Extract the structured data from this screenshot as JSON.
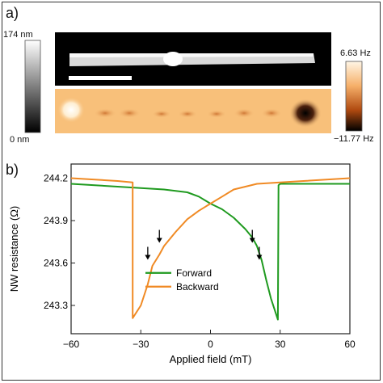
{
  "panel_a": {
    "label": "a)",
    "afm_colorbar": {
      "max_label": "174 nm",
      "min_label": "0 nm"
    },
    "mfm_colorbar": {
      "max_label": "6.63 Hz",
      "min_label": "−11.77 Hz"
    }
  },
  "panel_b": {
    "label": "b)"
  },
  "chart_data": {
    "type": "line",
    "xlabel": "Applied field (mT)",
    "ylabel": "NW resistance (Ω)",
    "xlim": [
      -60,
      60
    ],
    "ylim": [
      243.1,
      244.3
    ],
    "xticks": [
      -60,
      -30,
      0,
      30,
      60
    ],
    "xtick_labels": [
      "−60",
      "−30",
      "0",
      "30",
      "60"
    ],
    "yticks": [
      243.3,
      243.6,
      243.9,
      244.2
    ],
    "ytick_labels": [
      "243.3",
      "243.6",
      "243.9",
      "244.2"
    ],
    "legend_position": "bottom-center",
    "series": [
      {
        "name": "Forward",
        "color": "#1f9a1f",
        "x": [
          -60,
          -40,
          -20,
          -10,
          -5,
          0,
          5,
          10,
          15,
          18,
          20,
          22,
          24,
          26,
          28,
          29,
          29.3,
          30,
          40,
          60
        ],
        "y": [
          244.16,
          244.14,
          244.12,
          244.1,
          244.07,
          244.02,
          243.98,
          243.92,
          243.84,
          243.78,
          243.72,
          243.62,
          243.48,
          243.35,
          243.25,
          243.2,
          244.15,
          244.16,
          244.16,
          244.16
        ]
      },
      {
        "name": "Backward",
        "color": "#f08a24",
        "x": [
          -60,
          -40,
          -33.5,
          -33.5,
          -30,
          -27,
          -25,
          -22,
          -20,
          -15,
          -10,
          -5,
          0,
          5,
          10,
          20,
          40,
          60
        ],
        "y": [
          244.2,
          244.18,
          244.17,
          243.21,
          243.3,
          243.45,
          243.58,
          243.66,
          243.72,
          243.82,
          243.91,
          243.97,
          244.02,
          244.07,
          244.12,
          244.16,
          244.18,
          244.2
        ]
      }
    ],
    "annotations": [
      {
        "type": "arrow-down",
        "x": -27,
        "y": 243.6
      },
      {
        "type": "arrow-down",
        "x": -22,
        "y": 243.72
      },
      {
        "type": "arrow-down",
        "x": 18,
        "y": 243.72
      },
      {
        "type": "arrow-down",
        "x": 21,
        "y": 243.6
      }
    ]
  }
}
